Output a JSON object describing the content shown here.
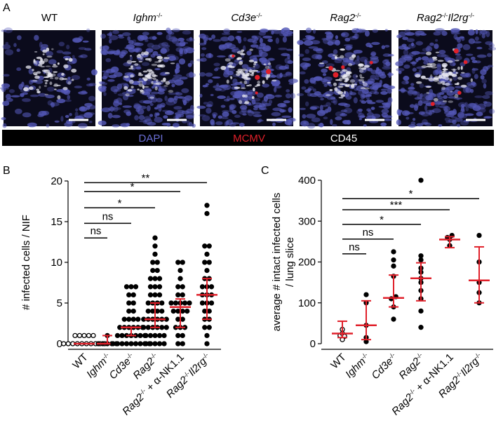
{
  "panel_a": {
    "label": "A",
    "images": [
      [
        {
          "text": "WT"
        }
      ],
      [
        {
          "text": "Ighm",
          "italic": true
        },
        {
          "text": "-/-",
          "sup": true
        }
      ],
      [
        {
          "text": "Cd3e",
          "italic": true
        },
        {
          "text": "-/-",
          "sup": true
        }
      ],
      [
        {
          "text": "Rag2",
          "italic": true
        },
        {
          "text": "-/-",
          "sup": true
        }
      ],
      [
        {
          "text": "Rag2",
          "italic": true
        },
        {
          "text": "-/-",
          "sup": true
        },
        {
          "text": "Il2rg",
          "italic": true
        },
        {
          "text": "-/-",
          "sup": true
        }
      ]
    ],
    "legend": [
      {
        "text": "DAPI",
        "color": "#6b6fd6"
      },
      {
        "text": "MCMV",
        "color": "#e0202a"
      },
      {
        "text": "CD45",
        "color": "#ffffff"
      }
    ]
  },
  "chart_data": [
    {
      "type": "dot",
      "panel": "B",
      "y_label": [
        "# infected cells /  NIF"
      ],
      "categories": [
        [
          {
            "text": "WT"
          }
        ],
        [
          {
            "text": "Ighm",
            "italic": true
          },
          {
            "text": "-/-",
            "sup": true
          }
        ],
        [
          {
            "text": "Cd3e",
            "italic": true
          },
          {
            "text": "-/-",
            "sup": true
          }
        ],
        [
          {
            "text": "Rag2",
            "italic": true
          },
          {
            "text": "-/-",
            "sup": true
          }
        ],
        [
          {
            "text": "Rag2",
            "italic": true
          },
          {
            "text": "-/-",
            "sup": true
          },
          {
            "text": " + α-NK1.1"
          }
        ],
        [
          {
            "text": "Rag2",
            "italic": true
          },
          {
            "text": "-/-",
            "sup": true
          },
          {
            "text": "Il2rg",
            "italic": true
          },
          {
            "text": "-/-",
            "sup": true
          }
        ]
      ],
      "markers": [
        "open",
        "filled",
        "filled",
        "filled",
        "filled",
        "filled"
      ],
      "color": "#000000",
      "summary_color": "#e0202a",
      "values": [
        [
          0,
          0,
          0,
          0,
          0,
          0,
          0,
          0,
          0,
          0,
          1,
          1,
          1,
          1,
          1
        ],
        [
          0,
          0,
          0,
          0,
          0,
          1
        ],
        [
          0,
          0,
          0,
          0,
          0,
          0,
          0,
          0,
          0,
          1,
          1,
          1,
          1,
          1,
          1,
          1,
          2,
          2,
          2,
          2,
          2,
          2,
          3,
          3,
          3,
          3,
          4,
          4,
          5,
          5,
          6,
          6,
          7,
          7,
          7
        ],
        [
          0,
          0,
          0,
          0,
          0,
          1,
          1,
          1,
          1,
          1,
          2,
          2,
          2,
          2,
          2,
          2,
          3,
          3,
          3,
          3,
          3,
          3,
          4,
          4,
          4,
          4,
          5,
          5,
          5,
          5,
          6,
          6,
          6,
          7,
          7,
          7,
          8,
          8,
          8,
          9,
          9,
          10,
          10,
          11,
          12,
          13
        ],
        [
          0,
          0,
          1,
          1,
          2,
          2,
          2,
          3,
          3,
          4,
          4,
          4,
          4,
          5,
          5,
          5,
          5,
          5,
          6,
          6,
          7,
          7,
          8,
          9,
          10,
          10
        ],
        [
          0,
          1,
          2,
          2,
          3,
          3,
          4,
          4,
          5,
          5,
          5,
          6,
          6,
          6,
          7,
          7,
          7,
          8,
          8,
          9,
          10,
          10,
          11,
          12,
          12,
          16,
          17
        ]
      ],
      "medians": [
        0,
        0,
        2,
        3,
        4.5,
        6
      ],
      "q1": [
        0,
        0,
        1,
        2,
        2,
        3
      ],
      "q3": [
        0,
        1,
        2,
        5,
        5.5,
        8
      ],
      "ylim": [
        0,
        20
      ],
      "yticks": [
        0,
        5,
        10,
        15,
        20
      ],
      "brackets": [
        {
          "from": 0,
          "to": 1,
          "y": 13,
          "label": "ns"
        },
        {
          "from": 0,
          "to": 2,
          "y": 14.8,
          "label": "ns"
        },
        {
          "from": 0,
          "to": 3,
          "y": 16.7,
          "label": "*"
        },
        {
          "from": 0,
          "to": 4,
          "y": 18.7,
          "label": "*"
        },
        {
          "from": 0,
          "to": 5,
          "y": 19.8,
          "label": "**"
        }
      ]
    },
    {
      "type": "dot",
      "panel": "C",
      "y_label": [
        "average # intact infected cells",
        "/ lung slice"
      ],
      "categories": [
        [
          {
            "text": "WT"
          }
        ],
        [
          {
            "text": "Ighm",
            "italic": true
          },
          {
            "text": "-/-",
            "sup": true
          }
        ],
        [
          {
            "text": "Cd3e",
            "italic": true
          },
          {
            "text": "-/-",
            "sup": true
          }
        ],
        [
          {
            "text": "Rag2",
            "italic": true
          },
          {
            "text": "-/-",
            "sup": true
          }
        ],
        [
          {
            "text": "Rag2",
            "italic": true
          },
          {
            "text": "-/-",
            "sup": true
          },
          {
            "text": " + α-NK1.1"
          }
        ],
        [
          {
            "text": "Rag2",
            "italic": true
          },
          {
            "text": "-/-",
            "sup": true
          },
          {
            "text": "Il2rg",
            "italic": true
          },
          {
            "text": "-/-",
            "sup": true
          }
        ]
      ],
      "markers": [
        "open",
        "filled",
        "filled",
        "filled",
        "filled",
        "filled"
      ],
      "color": "#000000",
      "summary_color": "#e0202a",
      "values": [
        [
          20,
          25,
          18,
          35,
          10
        ],
        [
          5,
          15,
          45,
          100,
          120
        ],
        [
          60,
          90,
          110,
          115,
          165,
          190,
          205,
          225
        ],
        [
          40,
          80,
          110,
          130,
          150,
          160,
          175,
          185,
          205,
          215,
          400
        ],
        [
          240,
          255,
          260,
          265
        ],
        [
          100,
          125,
          150,
          200,
          265
        ]
      ],
      "medians": [
        25,
        45,
        112,
        160,
        255,
        155
      ],
      "q1": [
        15,
        10,
        90,
        105,
        235,
        100
      ],
      "q3": [
        55,
        105,
        168,
        198,
        262,
        237
      ],
      "ylim": [
        0,
        400
      ],
      "yticks": [
        0,
        100,
        200,
        300,
        400
      ],
      "brackets": [
        {
          "from": 0,
          "to": 1,
          "y": 220,
          "label": "ns"
        },
        {
          "from": 0,
          "to": 2,
          "y": 256,
          "label": "ns"
        },
        {
          "from": 0,
          "to": 3,
          "y": 292,
          "label": "*"
        },
        {
          "from": 0,
          "to": 4,
          "y": 328,
          "label": "***"
        },
        {
          "from": 0,
          "to": 5,
          "y": 355,
          "label": "*"
        }
      ]
    }
  ]
}
